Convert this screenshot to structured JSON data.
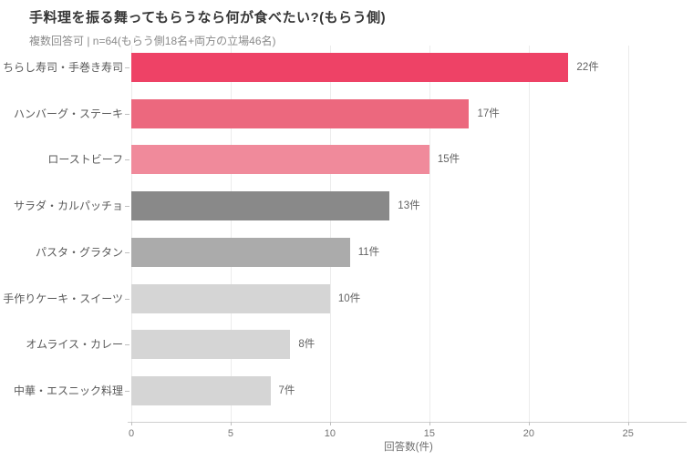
{
  "chart_data": {
    "type": "bar",
    "orientation": "horizontal",
    "title": "手料理を振る舞ってもらうなら何が食べたい?(もらう側)",
    "subtitle": "複数回答可 | n=64(もらう側18名+両方の立場46名)",
    "xlabel": "回答数(件)",
    "value_suffix": "件",
    "categories": [
      "ちらし寿司・手巻き寿司",
      "ハンバーグ・ステーキ",
      "ローストビーフ",
      "サラダ・カルパッチョ",
      "パスタ・グラタン",
      "手作りケーキ・スイーツ",
      "オムライス・カレー",
      "中華・エスニック料理"
    ],
    "values": [
      22,
      17,
      15,
      13,
      11,
      10,
      8,
      7
    ],
    "value_labels": [
      "22件",
      "17件",
      "15件",
      "13件",
      "11件",
      "10件",
      "8件",
      "7件"
    ],
    "bar_colors": [
      "#ee4266",
      "#ec687e",
      "#f08a9b",
      "#898989",
      "#ababab",
      "#d5d5d5",
      "#d5d5d5",
      "#d5d5d5"
    ],
    "xlim": [
      0,
      27.9
    ],
    "xticks": [
      0,
      5,
      10,
      15,
      20,
      25
    ],
    "grid": "vertical",
    "legend": "none",
    "colors": {
      "background": "#ffffff",
      "grid": "#ececec",
      "axis": "#cfcfcf",
      "title_text": "#363636",
      "subtitle_text": "#8a8a8a",
      "category_text": "#595959",
      "value_text": "#636363",
      "tick_text": "#737373"
    }
  }
}
